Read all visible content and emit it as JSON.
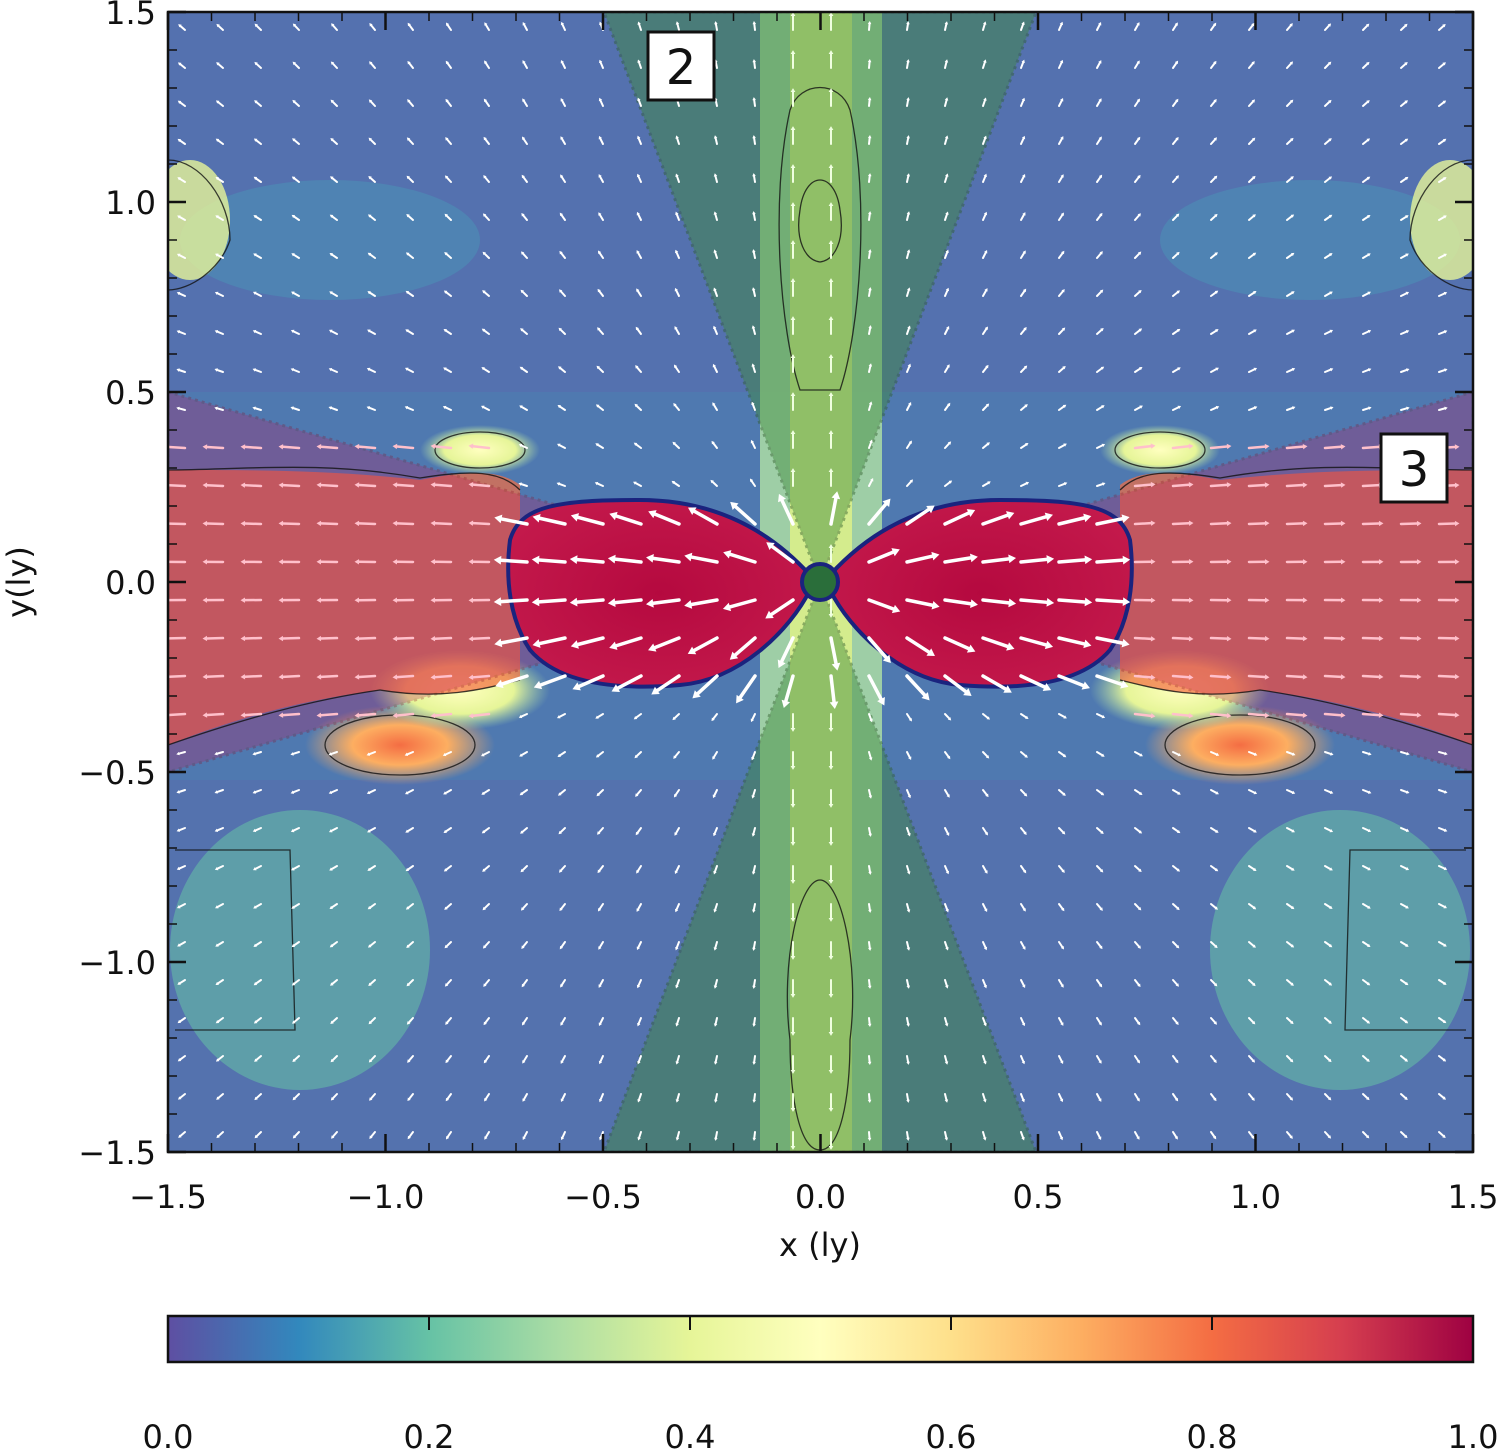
{
  "chart_data": {
    "type": "heatmap",
    "title": "",
    "xlabel": "x (ly)",
    "ylabel": "y(ly)",
    "xlim": [
      -1.5,
      1.5
    ],
    "ylim": [
      -1.5,
      1.5
    ],
    "x_ticks": [
      "−1.5",
      "−1.0",
      "−0.5",
      "0.0",
      "0.5",
      "1.0",
      "1.5"
    ],
    "x_tick_values": [
      -1.5,
      -1.0,
      -0.5,
      0.0,
      0.5,
      1.0,
      1.5
    ],
    "y_ticks": [
      "1.5",
      "1.0",
      "0.5",
      "0.0",
      "−0.5",
      "−1.0",
      "−1.5"
    ],
    "y_tick_values": [
      1.5,
      1.0,
      0.5,
      0.0,
      -0.5,
      -1.0,
      -1.5
    ],
    "colorbar": {
      "range": [
        0.0,
        1.0
      ],
      "ticks": [
        "0.0",
        "0.2",
        "0.4",
        "0.6",
        "0.8",
        "1.0"
      ],
      "tick_values": [
        0.0,
        0.2,
        0.4,
        0.6,
        0.8,
        1.0
      ],
      "colormap": [
        "#5e4fa2",
        "#3288bd",
        "#66c2a5",
        "#abdda4",
        "#e6f598",
        "#ffffbf",
        "#fee08b",
        "#fdae61",
        "#f46d43",
        "#d53e4f",
        "#9e0142"
      ]
    },
    "regions": [
      {
        "label": "2",
        "kind": "polar cone",
        "apex": [
          0.0,
          0.0
        ],
        "top_edge_x": [
          -0.5,
          0.5
        ],
        "color": "#2e7d32"
      },
      {
        "label": "3",
        "kind": "equatorial wedge",
        "apex": [
          0.0,
          0.0
        ],
        "right_edge_y": [
          -0.5,
          0.5
        ],
        "color": "#c62828"
      }
    ],
    "velocity_vectors": "white arrows over the field",
    "contours": "thin black contour lines"
  }
}
